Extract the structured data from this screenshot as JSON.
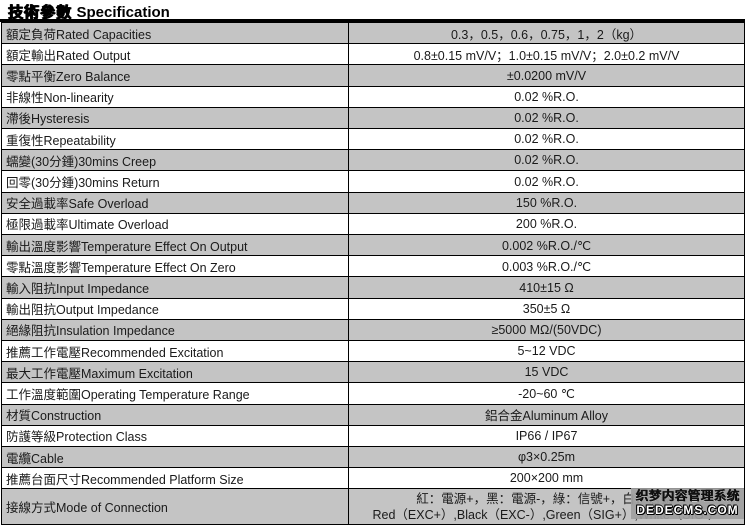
{
  "title": {
    "zh": "技術參數",
    "en": "Specification"
  },
  "colors": {
    "row_shaded": "#c4c4c4",
    "border": "#000000",
    "watermark_bg": "#9e9e9e"
  },
  "table": {
    "rows": [
      {
        "label": "額定負荷Rated Capacities",
        "value": "0.3，0.5，0.6，0.75，1，2（kg）"
      },
      {
        "label": "額定輸出Rated Output",
        "value": "0.8±0.15 mV/V；1.0±0.15 mV/V；2.0±0.2 mV/V"
      },
      {
        "label": "零點平衡Zero Balance",
        "value": "±0.0200 mV/V"
      },
      {
        "label": "非線性Non-linearity",
        "value": "0.02 %R.O."
      },
      {
        "label": "滯後Hysteresis",
        "value": "0.02 %R.O."
      },
      {
        "label": "重復性Repeatability",
        "value": "0.02 %R.O."
      },
      {
        "label": "蠕變(30分鍾)30mins Creep",
        "value": "0.02 %R.O."
      },
      {
        "label": "回零(30分鍾)30mins Return",
        "value": "0.02 %R.O."
      },
      {
        "label": "安全過載率Safe Overload",
        "value": "150 %R.O."
      },
      {
        "label": "極限過載率Ultimate Overload",
        "value": "200 %R.O."
      },
      {
        "label": "輸出溫度影響Temperature Effect On Output",
        "value": "0.002 %R.O./℃"
      },
      {
        "label": "零點溫度影響Temperature Effect On Zero",
        "value": "0.003 %R.O./℃"
      },
      {
        "label": "輸入阻抗Input Impedance",
        "value": "410±15 Ω"
      },
      {
        "label": "輸出阻抗Output Impedance",
        "value": "350±5 Ω"
      },
      {
        "label": "絕緣阻抗Insulation Impedance",
        "value": "≥5000 MΩ/(50VDC)"
      },
      {
        "label": "推薦工作電壓Recommended Excitation",
        "value": "5~12 VDC"
      },
      {
        "label": "最大工作電壓Maximum Excitation",
        "value": "15 VDC"
      },
      {
        "label": "工作溫度範圍Operating Temperature Range",
        "value": "-20~60 ℃"
      },
      {
        "label": "材質Construction",
        "value": "鋁合金Aluminum Alloy"
      },
      {
        "label": "防護等級Protection Class",
        "value": "IP66 / IP67"
      },
      {
        "label": "電纜Cable",
        "value": "φ3×0.25m"
      },
      {
        "label": "推薦台面尺寸Recommended Platform Size",
        "value": "200×200 mm"
      },
      {
        "label": "接線方式Mode of Connection",
        "value_lines": [
          "紅：電源+，黑：電源-，綠：信號+，白：信號-",
          "Red（EXC+）,Black（EXC-）,Green（SIG+）,White（SIG-）"
        ]
      }
    ]
  },
  "watermark": {
    "line1": "织梦内容管理系统",
    "line2": "DEDECMS.COM"
  }
}
